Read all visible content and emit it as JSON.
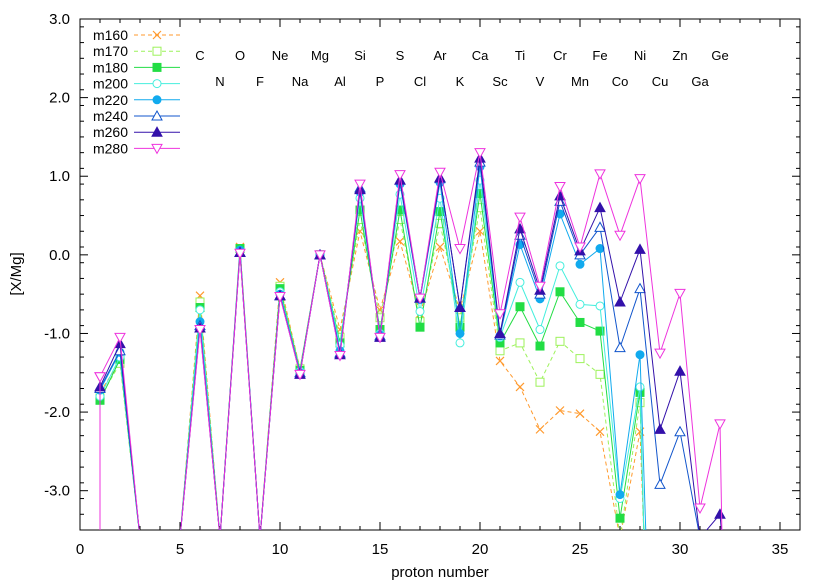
{
  "chart_data": {
    "type": "line",
    "title": "",
    "xlabel": "proton number",
    "ylabel": "[X/Mg]",
    "xlim": [
      0,
      36
    ],
    "ylim": [
      -3.5,
      3.0
    ],
    "x_ticks": [
      0,
      5,
      10,
      15,
      20,
      25,
      30,
      35
    ],
    "y_ticks": [
      -3.0,
      -2.0,
      -1.0,
      0.0,
      1.0,
      2.0,
      3.0
    ],
    "x_tick_labels": [
      "0",
      "5",
      "10",
      "15",
      "20",
      "25",
      "30",
      "35"
    ],
    "y_tick_labels": [
      "-3.0",
      "-2.0",
      "-1.0",
      "0.0",
      "1.0",
      "2.0",
      "3.0"
    ],
    "grid": false,
    "legend_position": "top-left",
    "element_labels_top": [
      {
        "z": 6,
        "text": "C"
      },
      {
        "z": 8,
        "text": "O"
      },
      {
        "z": 10,
        "text": "Ne"
      },
      {
        "z": 12,
        "text": "Mg"
      },
      {
        "z": 14,
        "text": "Si"
      },
      {
        "z": 16,
        "text": "S"
      },
      {
        "z": 18,
        "text": "Ar"
      },
      {
        "z": 20,
        "text": "Ca"
      },
      {
        "z": 22,
        "text": "Ti"
      },
      {
        "z": 24,
        "text": "Cr"
      },
      {
        "z": 26,
        "text": "Fe"
      },
      {
        "z": 28,
        "text": "Ni"
      },
      {
        "z": 30,
        "text": "Zn"
      },
      {
        "z": 32,
        "text": "Ge"
      }
    ],
    "element_labels_bottom": [
      {
        "z": 7,
        "text": "N"
      },
      {
        "z": 9,
        "text": "F"
      },
      {
        "z": 11,
        "text": "Na"
      },
      {
        "z": 13,
        "text": "Al"
      },
      {
        "z": 15,
        "text": "P"
      },
      {
        "z": 17,
        "text": "Cl"
      },
      {
        "z": 19,
        "text": "K"
      },
      {
        "z": 21,
        "text": "Sc"
      },
      {
        "z": 23,
        "text": "V"
      },
      {
        "z": 25,
        "text": "Mn"
      },
      {
        "z": 27,
        "text": "Co"
      },
      {
        "z": 29,
        "text": "Cu"
      },
      {
        "z": 31,
        "text": "Ga"
      }
    ],
    "series": [
      {
        "name": "m160",
        "color": "#ff9a2e",
        "marker": "x",
        "dash": true,
        "points": [
          [
            1,
            -1.75
          ],
          [
            2,
            -1.35
          ],
          [
            3,
            -3.6
          ],
          [
            5,
            -3.6
          ],
          [
            6,
            -0.52
          ],
          [
            7,
            -3.6
          ],
          [
            8,
            0.1
          ],
          [
            9,
            -3.6
          ],
          [
            10,
            -0.35
          ],
          [
            11,
            -1.45
          ],
          [
            12,
            0.0
          ],
          [
            13,
            -0.95
          ],
          [
            14,
            0.3
          ],
          [
            15,
            -0.7
          ],
          [
            16,
            0.17
          ],
          [
            17,
            -0.75
          ],
          [
            18,
            0.1
          ],
          [
            19,
            -0.7
          ],
          [
            20,
            0.3
          ],
          [
            21,
            -1.35
          ],
          [
            22,
            -1.68
          ],
          [
            23,
            -2.22
          ],
          [
            24,
            -1.98
          ],
          [
            25,
            -2.02
          ],
          [
            26,
            -2.25
          ],
          [
            27,
            -3.6
          ],
          [
            28,
            -2.25
          ],
          [
            28.2,
            -3.6
          ]
        ]
      },
      {
        "name": "m170",
        "color": "#9cf25a",
        "marker": "square-open",
        "dash": true,
        "points": [
          [
            1,
            -1.82
          ],
          [
            2,
            -1.38
          ],
          [
            3,
            -3.6
          ],
          [
            5,
            -3.6
          ],
          [
            6,
            -0.6
          ],
          [
            7,
            -3.6
          ],
          [
            8,
            0.08
          ],
          [
            9,
            -3.6
          ],
          [
            10,
            -0.4
          ],
          [
            11,
            -1.45
          ],
          [
            12,
            0.0
          ],
          [
            13,
            -1.05
          ],
          [
            14,
            0.45
          ],
          [
            15,
            -0.8
          ],
          [
            16,
            0.45
          ],
          [
            17,
            -0.85
          ],
          [
            18,
            0.4
          ],
          [
            19,
            -0.8
          ],
          [
            20,
            0.6
          ],
          [
            21,
            -1.22
          ],
          [
            22,
            -1.12
          ],
          [
            23,
            -1.62
          ],
          [
            24,
            -1.1
          ],
          [
            25,
            -1.32
          ],
          [
            26,
            -1.52
          ],
          [
            27,
            -3.6
          ],
          [
            28,
            -1.88
          ],
          [
            28.2,
            -3.6
          ]
        ]
      },
      {
        "name": "m180",
        "color": "#22dd44",
        "marker": "square",
        "dash": false,
        "points": [
          [
            1,
            -1.85
          ],
          [
            2,
            -1.33
          ],
          [
            3,
            -3.6
          ],
          [
            5,
            -3.6
          ],
          [
            6,
            -0.67
          ],
          [
            7,
            -3.6
          ],
          [
            8,
            0.08
          ],
          [
            9,
            -3.6
          ],
          [
            10,
            -0.43
          ],
          [
            11,
            -1.47
          ],
          [
            12,
            0.0
          ],
          [
            13,
            -1.12
          ],
          [
            14,
            0.57
          ],
          [
            15,
            -0.95
          ],
          [
            16,
            0.57
          ],
          [
            17,
            -0.92
          ],
          [
            18,
            0.55
          ],
          [
            19,
            -0.92
          ],
          [
            20,
            0.78
          ],
          [
            21,
            -1.12
          ],
          [
            22,
            -0.66
          ],
          [
            23,
            -1.16
          ],
          [
            24,
            -0.47
          ],
          [
            25,
            -0.86
          ],
          [
            26,
            -0.97
          ],
          [
            27,
            -3.35
          ],
          [
            28,
            -1.75
          ],
          [
            28.2,
            -3.6
          ]
        ]
      },
      {
        "name": "m200",
        "color": "#44eedd",
        "marker": "circle-open",
        "dash": false,
        "points": [
          [
            1,
            -1.8
          ],
          [
            2,
            -1.3
          ],
          [
            3,
            -3.6
          ],
          [
            5,
            -3.6
          ],
          [
            6,
            -0.7
          ],
          [
            7,
            -3.6
          ],
          [
            8,
            0.06
          ],
          [
            9,
            -3.6
          ],
          [
            10,
            -0.47
          ],
          [
            11,
            -1.48
          ],
          [
            12,
            0.0
          ],
          [
            13,
            -1.15
          ],
          [
            14,
            0.72
          ],
          [
            15,
            -1.0
          ],
          [
            16,
            0.77
          ],
          [
            17,
            -0.72
          ],
          [
            18,
            0.72
          ],
          [
            19,
            -1.12
          ],
          [
            20,
            0.95
          ],
          [
            21,
            -1.05
          ],
          [
            22,
            -0.35
          ],
          [
            23,
            -0.95
          ],
          [
            24,
            -0.14
          ],
          [
            25,
            -0.63
          ],
          [
            26,
            -0.65
          ],
          [
            27,
            -3.1
          ],
          [
            28,
            -1.68
          ],
          [
            28.2,
            -3.6
          ]
        ]
      },
      {
        "name": "m220",
        "color": "#11aaee",
        "marker": "circle",
        "dash": false,
        "points": [
          [
            1,
            -1.72
          ],
          [
            2,
            -1.24
          ],
          [
            3,
            -3.6
          ],
          [
            5,
            -3.6
          ],
          [
            6,
            -0.85
          ],
          [
            7,
            -3.6
          ],
          [
            8,
            0.06
          ],
          [
            9,
            -3.6
          ],
          [
            10,
            -0.5
          ],
          [
            11,
            -1.5
          ],
          [
            12,
            0.0
          ],
          [
            13,
            -1.22
          ],
          [
            14,
            0.8
          ],
          [
            15,
            -1.02
          ],
          [
            16,
            0.9
          ],
          [
            17,
            -0.57
          ],
          [
            18,
            0.92
          ],
          [
            19,
            -1.0
          ],
          [
            20,
            1.12
          ],
          [
            21,
            -1.03
          ],
          [
            22,
            0.13
          ],
          [
            23,
            -0.56
          ],
          [
            24,
            0.52
          ],
          [
            25,
            -0.12
          ],
          [
            26,
            0.08
          ],
          [
            27,
            -3.05
          ],
          [
            28,
            -1.27
          ],
          [
            28.3,
            -3.6
          ]
        ]
      },
      {
        "name": "m240",
        "color": "#1155cc",
        "marker": "triangle-open",
        "dash": false,
        "points": [
          [
            1,
            -1.7
          ],
          [
            2,
            -1.22
          ],
          [
            3,
            -3.6
          ],
          [
            5,
            -3.6
          ],
          [
            6,
            -0.9
          ],
          [
            7,
            -3.6
          ],
          [
            8,
            0.03
          ],
          [
            9,
            -3.6
          ],
          [
            10,
            -0.52
          ],
          [
            11,
            -1.5
          ],
          [
            12,
            0.0
          ],
          [
            13,
            -1.25
          ],
          [
            14,
            0.85
          ],
          [
            15,
            -1.03
          ],
          [
            16,
            0.95
          ],
          [
            17,
            -0.55
          ],
          [
            18,
            0.97
          ],
          [
            19,
            -0.67
          ],
          [
            20,
            1.18
          ],
          [
            21,
            -1.02
          ],
          [
            22,
            0.25
          ],
          [
            23,
            -0.5
          ],
          [
            24,
            0.68
          ],
          [
            25,
            0.0
          ],
          [
            26,
            0.35
          ],
          [
            27,
            -1.18
          ],
          [
            28,
            -0.43
          ],
          [
            29,
            -2.92
          ],
          [
            30,
            -2.25
          ],
          [
            31,
            -3.6
          ]
        ]
      },
      {
        "name": "m260",
        "color": "#3311aa",
        "marker": "triangle",
        "dash": false,
        "points": [
          [
            1,
            -1.68
          ],
          [
            2,
            -1.13
          ],
          [
            3,
            -3.6
          ],
          [
            5,
            -3.6
          ],
          [
            6,
            -0.93
          ],
          [
            7,
            -3.6
          ],
          [
            8,
            0.03
          ],
          [
            9,
            -3.6
          ],
          [
            10,
            -0.52
          ],
          [
            11,
            -1.52
          ],
          [
            12,
            0.0
          ],
          [
            13,
            -1.27
          ],
          [
            14,
            0.83
          ],
          [
            15,
            -1.05
          ],
          [
            16,
            0.95
          ],
          [
            17,
            -0.55
          ],
          [
            18,
            0.98
          ],
          [
            19,
            -0.67
          ],
          [
            20,
            1.23
          ],
          [
            21,
            -1.0
          ],
          [
            22,
            0.33
          ],
          [
            23,
            -0.45
          ],
          [
            24,
            0.75
          ],
          [
            25,
            0.05
          ],
          [
            26,
            0.6
          ],
          [
            27,
            -0.6
          ],
          [
            28,
            0.07
          ],
          [
            29,
            -2.22
          ],
          [
            30,
            -1.48
          ],
          [
            31,
            -3.6
          ],
          [
            32,
            -3.3
          ],
          [
            32.1,
            -3.6
          ]
        ]
      },
      {
        "name": "m280",
        "color": "#ee33dd",
        "marker": "triangle-down-open",
        "dash": false,
        "points": [
          [
            1,
            -1.55
          ],
          [
            1,
            -3.6
          ],
          [
            1,
            -1.55
          ],
          [
            2,
            -1.05
          ],
          [
            3,
            -3.6
          ],
          [
            5,
            -3.6
          ],
          [
            6,
            -0.95
          ],
          [
            7,
            -3.6
          ],
          [
            8,
            0.02
          ],
          [
            9,
            -3.6
          ],
          [
            10,
            -0.53
          ],
          [
            11,
            -1.52
          ],
          [
            12,
            0.0
          ],
          [
            13,
            -1.28
          ],
          [
            14,
            0.9
          ],
          [
            15,
            -1.05
          ],
          [
            16,
            1.02
          ],
          [
            17,
            -0.55
          ],
          [
            18,
            1.05
          ],
          [
            19,
            0.08
          ],
          [
            20,
            1.3
          ],
          [
            21,
            -0.75
          ],
          [
            22,
            0.48
          ],
          [
            23,
            -0.4
          ],
          [
            24,
            0.87
          ],
          [
            25,
            0.1
          ],
          [
            26,
            1.03
          ],
          [
            27,
            0.25
          ],
          [
            28,
            0.97
          ],
          [
            29,
            -1.25
          ],
          [
            30,
            -0.49
          ],
          [
            31,
            -3.22
          ],
          [
            32,
            -2.15
          ],
          [
            32.1,
            -3.6
          ]
        ]
      }
    ]
  }
}
